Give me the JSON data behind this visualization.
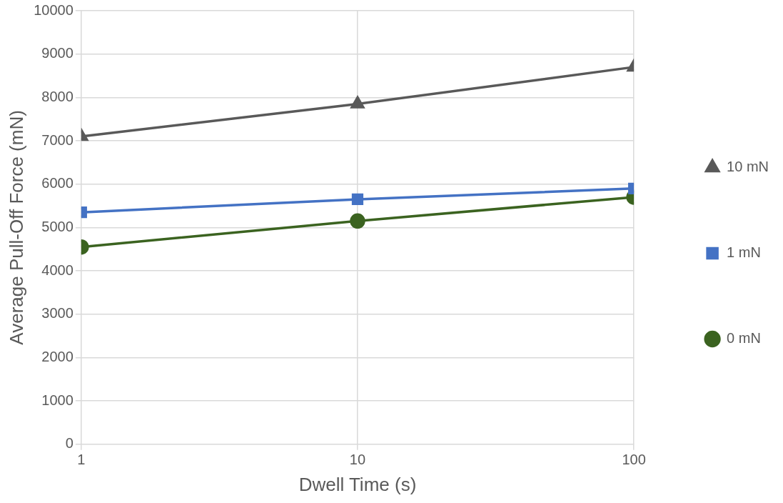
{
  "chart_data": {
    "type": "line",
    "xlabel": "Dwell Time (s)",
    "ylabel": "Average Pull-Off Force (mN)",
    "x": [
      1,
      10,
      100
    ],
    "series": [
      {
        "name": "10 mN",
        "color": "#595959",
        "marker": "triangle",
        "values": [
          7100,
          7850,
          8700
        ]
      },
      {
        "name": "1 mN",
        "color": "#4472c4",
        "marker": "square",
        "values": [
          5350,
          5650,
          5900
        ]
      },
      {
        "name": "0 mN",
        "color": "#3b6320",
        "marker": "circle",
        "values": [
          4550,
          5150,
          5700
        ]
      }
    ],
    "log": "x",
    "xlim": [
      1,
      100
    ],
    "xticks": [
      1,
      10,
      100
    ],
    "ylim": [
      0,
      10000
    ],
    "yticks": [
      0,
      1000,
      2000,
      3000,
      4000,
      5000,
      6000,
      7000,
      8000,
      9000,
      10000
    ],
    "grid": true,
    "legend": "right",
    "line_style": "solid"
  }
}
